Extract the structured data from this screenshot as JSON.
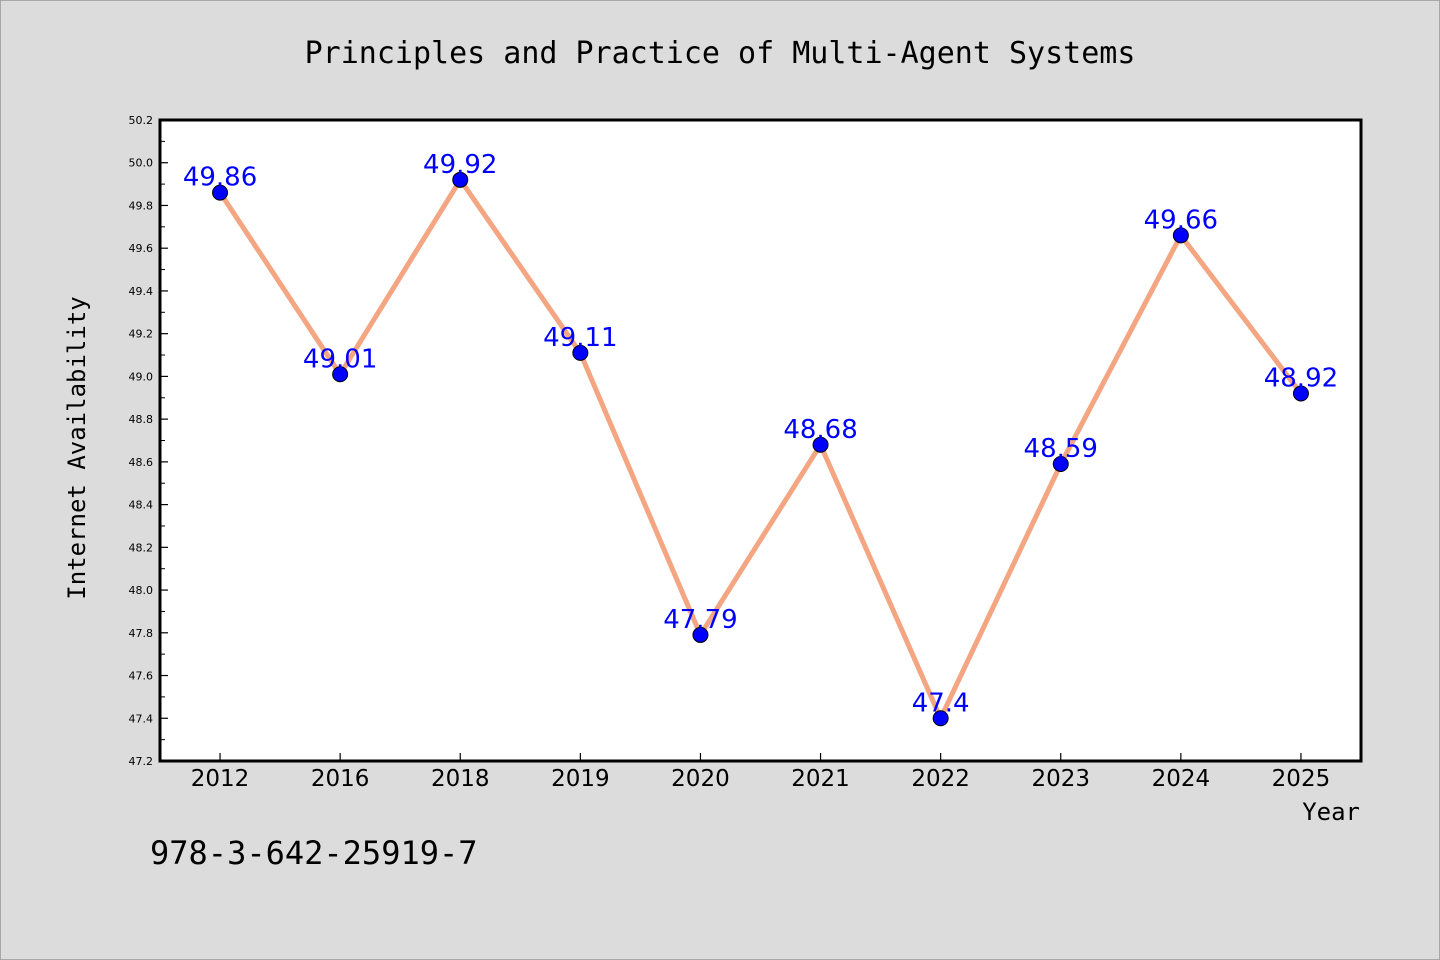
{
  "chart_data": {
    "type": "line",
    "title": "Principles and Practice of Multi-Agent Systems",
    "xlabel": "Year",
    "ylabel": "Internet Availability",
    "categories": [
      "2012",
      "2016",
      "2018",
      "2019",
      "2020",
      "2021",
      "2022",
      "2023",
      "2024",
      "2025"
    ],
    "values": [
      49.86,
      49.01,
      49.92,
      49.11,
      47.79,
      48.68,
      47.4,
      48.59,
      49.66,
      48.92
    ],
    "data_labels": [
      "49.86",
      "49.01",
      "49.92",
      "49.11",
      "47.79",
      "48.68",
      "47.4",
      "48.59",
      "49.66",
      "48.92"
    ],
    "ylim": [
      47.2,
      50.2
    ],
    "yticks": [
      "47.2",
      "47.4",
      "47.6",
      "47.8",
      "48.0",
      "48.2",
      "48.4",
      "48.6",
      "48.8",
      "49.0",
      "49.2",
      "49.4",
      "49.6",
      "49.8",
      "50.0",
      "50.2"
    ],
    "ytick_values": [
      47.2,
      47.4,
      47.6,
      47.8,
      48.0,
      48.2,
      48.4,
      48.6,
      48.8,
      49.0,
      49.2,
      49.4,
      49.6,
      49.8,
      50.0,
      50.2
    ],
    "grid": false,
    "legend": "none",
    "colors": {
      "line": "#f4a582",
      "marker": "#0000ff",
      "label": "#0000ff",
      "background": "#dcdcdc",
      "plot_area": "#ffffff"
    }
  },
  "footer": {
    "isbn": "978-3-642-25919-7"
  }
}
